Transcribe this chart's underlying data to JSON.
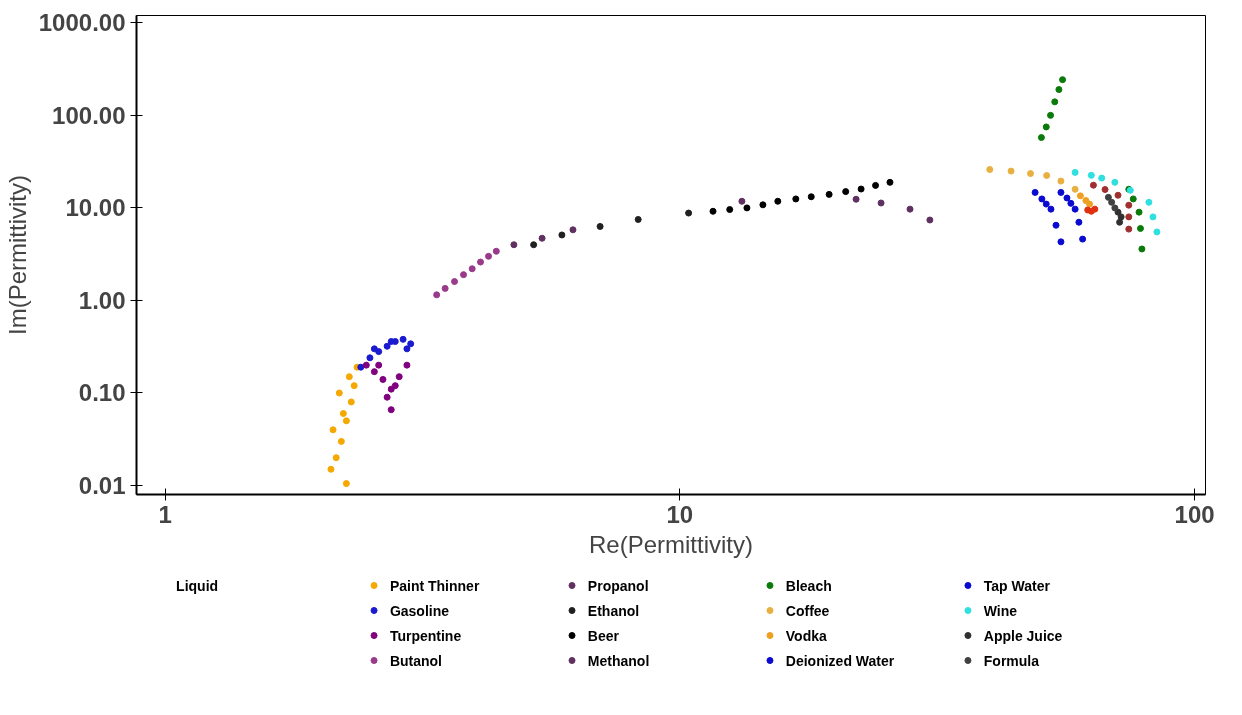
{
  "chart_data": {
    "type": "scatter",
    "xlabel": "Re(Permittivity)",
    "ylabel": "Im(Permittivity)",
    "legend_title": "Liquid",
    "legend": "bottom",
    "log": "xy",
    "grid": false,
    "marker": "circle",
    "xlim": [
      0.88,
      105
    ],
    "ylim": [
      0.008,
      1200
    ],
    "xticks": [
      1,
      10,
      100
    ],
    "yticks": [
      {
        "value": 0.01,
        "label": "0.01"
      },
      {
        "value": 0.1,
        "label": "0.10"
      },
      {
        "value": 1,
        "label": "1.00"
      },
      {
        "value": 10,
        "label": "10.00"
      },
      {
        "value": 100,
        "label": "100.00"
      },
      {
        "value": 1000,
        "label": "1000.00"
      }
    ],
    "series": [
      {
        "name": "Paint Thinner",
        "color": "#f5a800",
        "x": [
          2.1,
          2.15,
          2.2,
          2.25,
          2.3,
          2.36,
          2.12,
          2.18,
          2.28,
          2.33,
          2.22,
          2.25
        ],
        "values": [
          0.015,
          0.02,
          0.03,
          0.05,
          0.08,
          0.19,
          0.04,
          0.1,
          0.15,
          0.12,
          0.06,
          0.0105
        ]
      },
      {
        "name": "Gasoline",
        "color": "#1a1ad0",
        "x": [
          2.4,
          2.5,
          2.6,
          2.7,
          2.8,
          2.9,
          3.0,
          2.55,
          2.75,
          2.95
        ],
        "values": [
          0.19,
          0.24,
          0.28,
          0.32,
          0.36,
          0.38,
          0.34,
          0.3,
          0.36,
          0.3
        ]
      },
      {
        "name": "Turpentine",
        "color": "#800080",
        "x": [
          2.46,
          2.55,
          2.65,
          2.75,
          2.85,
          2.95,
          2.6,
          2.7,
          2.8,
          2.75
        ],
        "values": [
          0.2,
          0.17,
          0.14,
          0.11,
          0.15,
          0.2,
          0.2,
          0.09,
          0.12,
          0.066
        ]
      },
      {
        "name": "Butanol",
        "color": "#9a3a8a",
        "x": [
          3.37,
          3.5,
          3.65,
          3.8,
          3.95,
          4.1,
          4.25,
          4.4
        ],
        "values": [
          1.15,
          1.35,
          1.6,
          1.9,
          2.2,
          2.6,
          3.0,
          3.4
        ]
      },
      {
        "name": "Propanol",
        "color": "#603060",
        "x": [
          4.76,
          5.4,
          6.2
        ],
        "values": [
          4.0,
          4.7,
          5.8
        ]
      },
      {
        "name": "Ethanol",
        "color": "#202020",
        "x": [
          5.2,
          5.9,
          7.0,
          8.3,
          10.4
        ],
        "values": [
          4.0,
          5.1,
          6.3,
          7.5,
          8.8
        ]
      },
      {
        "name": "Beer",
        "color": "#000000",
        "x": [
          11.6,
          12.5,
          13.5,
          14.5,
          15.5,
          16.8,
          18.0,
          19.5,
          21.0,
          22.5,
          24.0,
          25.6
        ],
        "values": [
          9.2,
          9.6,
          10.0,
          10.8,
          11.8,
          12.5,
          13.2,
          14.0,
          15.0,
          16.0,
          17.5,
          18.9
        ]
      },
      {
        "name": "Methanol",
        "color": "#603060",
        "x": [
          13.2,
          22,
          24.6,
          28,
          30.6
        ],
        "values": [
          11.8,
          12.4,
          11.3,
          9.7,
          7.4
        ]
      },
      {
        "name": "Bleach",
        "color": "#0a7a0a",
        "x": [
          50.4,
          51.5,
          52.5,
          53.5,
          54.5,
          55.4,
          74.5,
          76,
          78,
          78.5,
          79
        ],
        "values": [
          57.6,
          75,
          100,
          140,
          190,
          243,
          15.9,
          12.5,
          9,
          6,
          3.6
        ]
      },
      {
        "name": "Coffee",
        "color": "#e8b040",
        "x": [
          40,
          44,
          48,
          51.6,
          55,
          58.6
        ],
        "values": [
          26,
          25,
          23.5,
          22.4,
          19.5,
          15.9
        ]
      },
      {
        "name": "Vodka",
        "color": "#f0a020",
        "x": [
          60,
          61.5,
          62.5
        ],
        "values": [
          13.5,
          12,
          11
        ]
      },
      {
        "name": "Deionized Water",
        "color": "#0a0ad0",
        "x": [
          49,
          50.5,
          51.5,
          52.6,
          53.8,
          55
        ],
        "values": [
          14.7,
          12.5,
          11,
          9.7,
          6.5,
          4.3
        ]
      },
      {
        "name": "Tap Water",
        "color": "#0a0ad0",
        "x": [
          55,
          56.5,
          57.5,
          58.6,
          59.6,
          60.6
        ],
        "values": [
          14.7,
          12.8,
          11.2,
          9.7,
          7,
          4.6
        ]
      },
      {
        "name": "Wine",
        "color": "#30e0e0",
        "x": [
          58.6,
          63,
          66,
          70,
          75,
          81.5,
          83,
          84.5
        ],
        "values": [
          24.2,
          22.5,
          21,
          18.9,
          15.5,
          11.5,
          8,
          5.5
        ]
      },
      {
        "color": "#a03030",
        "x": [
          63.6,
          67,
          71,
          74.5,
          74.5,
          74.5
        ],
        "values": [
          17.6,
          15.8,
          13.7,
          10.7,
          8,
          5.9
        ]
      },
      {
        "color": "#e03010",
        "x": [
          62,
          63,
          64
        ],
        "values": [
          9.5,
          9.2,
          9.7
        ]
      },
      {
        "name": "Apple Juice",
        "color": "#303030",
        "x": [
          71,
          72,
          71.5
        ],
        "values": [
          9,
          8,
          7
        ]
      },
      {
        "name": "Formula",
        "color": "#404040",
        "x": [
          68,
          69,
          70
        ],
        "values": [
          13,
          11.5,
          10
        ]
      }
    ]
  }
}
